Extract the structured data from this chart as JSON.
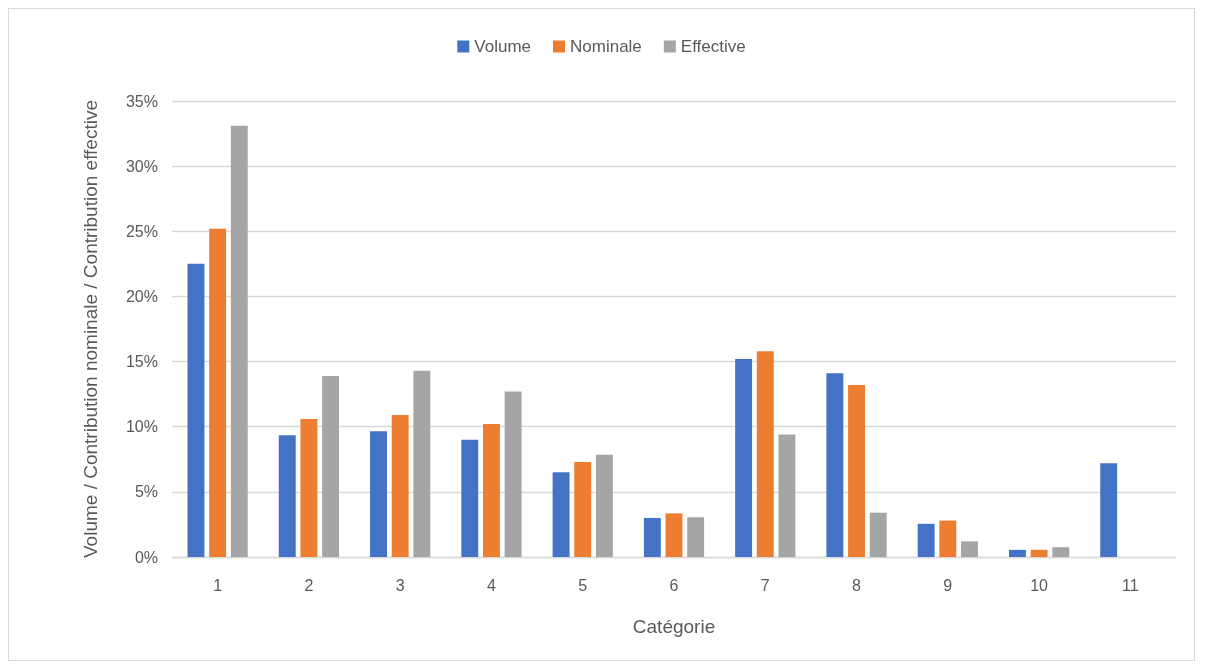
{
  "chart_data": {
    "type": "bar",
    "xlabel": "Catégorie",
    "ylabel": "Volume / Contribution nominale / Contribution effective",
    "categories": [
      "1",
      "2",
      "3",
      "4",
      "5",
      "6",
      "7",
      "8",
      "9",
      "10",
      "11"
    ],
    "series": [
      {
        "name": "Volume",
        "color": "#4472c4",
        "values": [
          22.5,
          9.35,
          9.65,
          9.0,
          6.5,
          3.0,
          15.2,
          14.1,
          2.55,
          0.55,
          7.2
        ]
      },
      {
        "name": "Nominale",
        "color": "#ed7d31",
        "values": [
          25.2,
          10.6,
          10.9,
          10.2,
          7.3,
          3.35,
          15.8,
          13.2,
          2.8,
          0.55,
          null
        ]
      },
      {
        "name": "Effective",
        "color": "#a5a5a5",
        "values": [
          33.1,
          13.9,
          14.3,
          12.7,
          7.85,
          3.05,
          9.4,
          3.4,
          1.2,
          0.75,
          null
        ]
      }
    ],
    "ylim": [
      0,
      35
    ],
    "yticks": [
      {
        "value": 0,
        "label": "0%"
      },
      {
        "value": 5,
        "label": "5%"
      },
      {
        "value": 10,
        "label": "10%"
      },
      {
        "value": 15,
        "label": "15%"
      },
      {
        "value": 20,
        "label": "20%"
      },
      {
        "value": 25,
        "label": "25%"
      },
      {
        "value": 30,
        "label": "30%"
      },
      {
        "value": 35,
        "label": "35%"
      }
    ],
    "grid": "y",
    "legend": "top"
  }
}
